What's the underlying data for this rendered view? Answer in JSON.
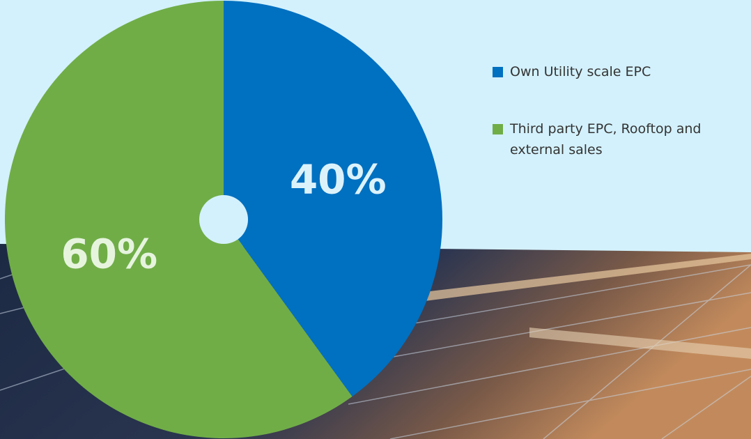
{
  "chart_data": {
    "type": "pie",
    "categories": [
      "Own Utility scale EPC",
      "Third party EPC, Rooftop and external sales"
    ],
    "values": [
      40,
      60
    ],
    "value_labels": [
      "40%",
      "60%"
    ],
    "colors": [
      "#0070c0",
      "#70ad47"
    ]
  }
}
